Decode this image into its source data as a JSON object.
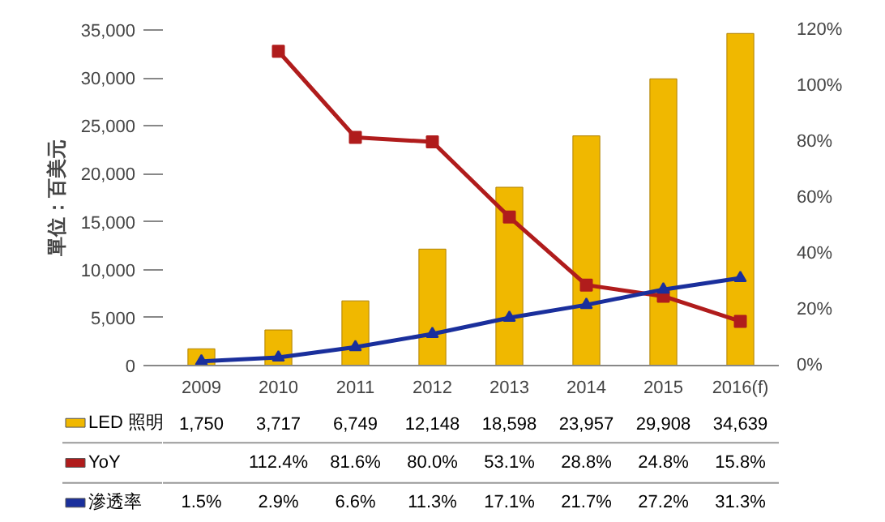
{
  "chart_data": {
    "type": "bar",
    "ylabel": "單位：百美元",
    "categories": [
      "2009",
      "2010",
      "2011",
      "2012",
      "2013",
      "2014",
      "2015",
      "2016(f)"
    ],
    "series": [
      {
        "name": "LED 照明",
        "color": "#f0b800",
        "values": [
          1750,
          3717,
          6749,
          12148,
          18598,
          23957,
          29908,
          34639
        ],
        "value_labels": [
          "1,750",
          "3,717",
          "6,749",
          "12,148",
          "18,598",
          "23,957",
          "29,908",
          "34,639"
        ]
      },
      {
        "name": "YoY",
        "type": "line",
        "axis": "y2",
        "color": "#b01c1c",
        "marker": "square",
        "values": [
          null,
          112.4,
          81.6,
          80.0,
          53.1,
          28.8,
          24.8,
          15.8
        ],
        "value_labels": [
          null,
          "112.4%",
          "81.6%",
          "80.0%",
          "53.1%",
          "28.8%",
          "24.8%",
          "15.8%"
        ]
      },
      {
        "name": "滲透率",
        "type": "line",
        "axis": "y2",
        "color": "#1a2f9c",
        "marker": "triangle",
        "values": [
          1.5,
          2.9,
          6.6,
          11.3,
          17.1,
          21.7,
          27.2,
          31.3
        ],
        "value_labels": [
          "1.5%",
          "2.9%",
          "6.6%",
          "11.3%",
          "17.1%",
          "21.7%",
          "27.2%",
          "31.3%"
        ]
      }
    ],
    "ylim": [
      0,
      35000
    ],
    "yticks": [
      0,
      {
        "value": 5000,
        "label": "5,000"
      },
      {
        "value": 10000,
        "label": "10,000"
      },
      {
        "value": 15000,
        "label": "15,000"
      },
      {
        "value": 20000,
        "label": "20,000"
      },
      {
        "value": 25000,
        "label": "25,000"
      },
      {
        "value": 30000,
        "label": "30,000"
      },
      {
        "value": 35000,
        "label": "35,000"
      }
    ],
    "y2lim": [
      0,
      120
    ],
    "y2ticks": [
      {
        "value": 0,
        "label": "0%"
      },
      {
        "value": 20,
        "label": "20%"
      },
      {
        "value": 40,
        "label": "40%"
      },
      {
        "value": 60,
        "label": "60%"
      },
      {
        "value": 80,
        "label": "80%"
      },
      {
        "value": 100,
        "label": "100%"
      },
      {
        "value": 120,
        "label": "120%"
      }
    ],
    "legend": "bottom left",
    "grid": false
  }
}
